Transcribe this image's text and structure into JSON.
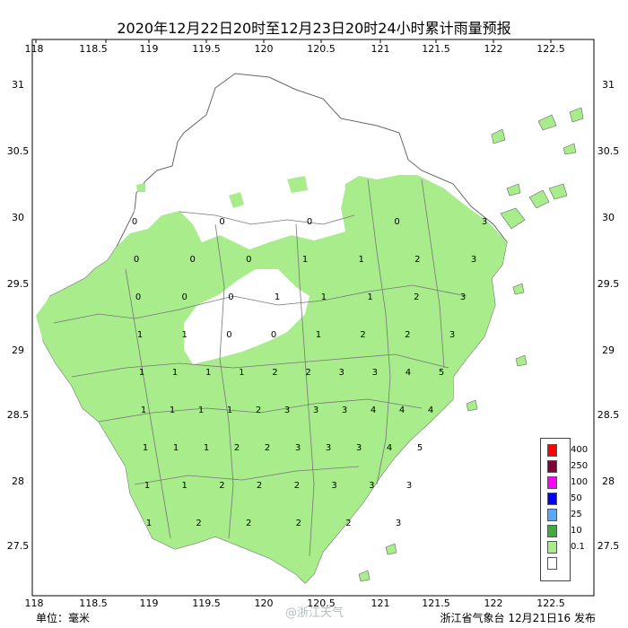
{
  "title": "2020年12月22日20时至12月23日20时24小时累计雨量预报",
  "axes": {
    "lon_labels": [
      "118",
      "118.5",
      "119",
      "119.5",
      "120",
      "120.5",
      "121",
      "121.5",
      "122",
      "122.5"
    ],
    "lat_labels": [
      "31",
      "30.5",
      "30",
      "29.5",
      "29",
      "28.5",
      "28",
      "27.5"
    ]
  },
  "legend": {
    "items": [
      {
        "label": "400",
        "color": "#ff0000"
      },
      {
        "label": "250",
        "color": "#80003a"
      },
      {
        "label": "100",
        "color": "#ff00ff"
      },
      {
        "label": "50",
        "color": "#0000ff"
      },
      {
        "label": "25",
        "color": "#55aaff"
      },
      {
        "label": "10",
        "color": "#3dae3d"
      },
      {
        "label": "0.1",
        "color": "#a8ec8c"
      },
      {
        "label": "",
        "color": "#ffffff"
      }
    ]
  },
  "footer": {
    "unit": "单位：毫米",
    "issuer": "浙江省气象台 12月21日16 发布",
    "watermark": "@浙江天气"
  },
  "grid_values": [
    [
      "0",
      "0",
      "0",
      "0",
      "3"
    ],
    [
      "0",
      "0",
      "0",
      "1",
      "1",
      "2",
      "3"
    ],
    [
      "0",
      "0",
      "0",
      "1",
      "1",
      "1",
      "2",
      "3"
    ],
    [
      "1",
      "1",
      "0",
      "0",
      "1",
      "2",
      "2",
      "3"
    ],
    [
      "1",
      "1",
      "1",
      "1",
      "2",
      "2",
      "3",
      "3",
      "4",
      "5"
    ],
    [
      "1",
      "1",
      "1",
      "1",
      "2",
      "3",
      "3",
      "3",
      "4",
      "4",
      "4"
    ],
    [
      "1",
      "1",
      "1",
      "2",
      "2",
      "3",
      "3",
      "3",
      "4",
      "5"
    ],
    [
      "1",
      "1",
      "2",
      "2",
      "2",
      "3",
      "3",
      "3"
    ],
    [
      "1",
      "2",
      "2",
      "2",
      "2",
      "3"
    ]
  ]
}
